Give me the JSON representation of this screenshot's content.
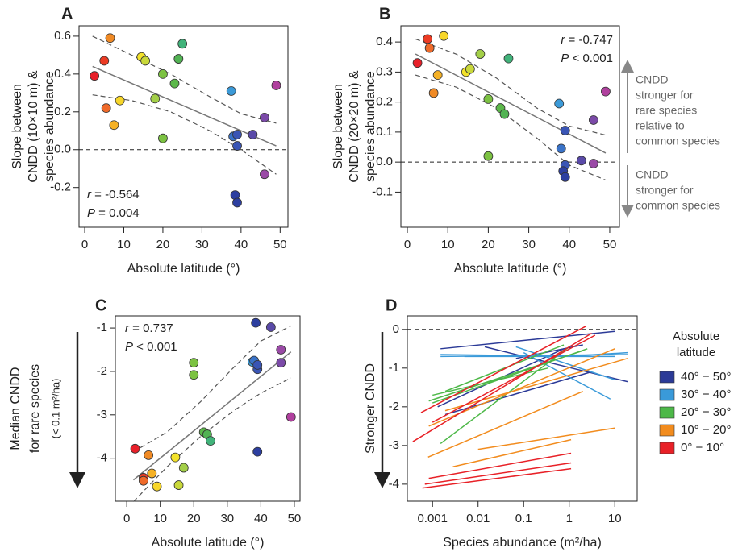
{
  "chart_data": [
    {
      "type": "scatter",
      "panel": "A",
      "xlabel": "Absolute latitude (°)",
      "ylabel": [
        "Slope between",
        "CNDD (10×10 m) &",
        "species abundance"
      ],
      "xlim": [
        -1.45,
        52
      ],
      "ylim": [
        -0.41,
        0.655
      ],
      "xticks": [
        0,
        10,
        20,
        30,
        40,
        50
      ],
      "yticks": [
        0.6,
        0.4,
        0.2,
        {
          "value": 0,
          "label": "0.0"
        },
        -0.2
      ],
      "hline": 0,
      "x": [
        2.5,
        5,
        5.5,
        6.5,
        7.5,
        9,
        14.5,
        15.5,
        18,
        20,
        20,
        23,
        24,
        25,
        37.5,
        38,
        39,
        39,
        38.5,
        39,
        43,
        46,
        46,
        49
      ],
      "y": [
        0.39,
        0.47,
        0.22,
        0.59,
        0.13,
        0.26,
        0.49,
        0.47,
        0.27,
        0.4,
        0.06,
        0.35,
        0.48,
        0.56,
        0.31,
        0.07,
        0.08,
        0.02,
        -0.24,
        -0.28,
        0.08,
        0.17,
        -0.13,
        0.34
      ],
      "colors": [
        "#e8202a",
        "#ec3b24",
        "#ef6a2a",
        "#f08a25",
        "#f5b125",
        "#f7d62a",
        "#f3e22a",
        "#c9d83a",
        "#a3cf48",
        "#7cc242",
        "#7cc242",
        "#5cb84a",
        "#52b353",
        "#41b37a",
        "#3b9ad8",
        "#3a73c8",
        "#3a55b5",
        "#3a55b5",
        "#2d3fa0",
        "#2d3fa0",
        "#5a4aa8",
        "#7b4aa8",
        "#9a4aa6",
        "#b0409e"
      ],
      "fit": {
        "x": [
          2,
          49
        ],
        "y": [
          0.44,
          0.02
        ]
      },
      "ci_upper": {
        "x": [
          2,
          12,
          22,
          32,
          40,
          49
        ],
        "y": [
          0.6,
          0.5,
          0.4,
          0.28,
          0.19,
          0.14
        ]
      },
      "ci_lower": {
        "x": [
          2,
          12,
          22,
          32,
          40,
          49
        ],
        "y": [
          0.29,
          0.26,
          0.2,
          0.1,
          0.0,
          -0.13
        ]
      },
      "stats_corner": "bottom-left",
      "stats": [
        {
          "symbol": "r",
          "text": " = -0.564"
        },
        {
          "symbol": "P",
          "text": " = 0.004"
        }
      ]
    },
    {
      "type": "scatter",
      "panel": "B",
      "xlabel": "Absolute latitude (°)",
      "ylabel": [
        "Slope between",
        "CNDD (20×20 m) &",
        "species abundance"
      ],
      "xlim": [
        -1.6,
        52.4
      ],
      "ylim": [
        -0.217,
        0.454
      ],
      "xticks": [
        0,
        10,
        20,
        30,
        40,
        50
      ],
      "yticks": [
        0.4,
        0.3,
        0.2,
        0.1,
        {
          "value": 0,
          "label": "0.0"
        },
        -0.1
      ],
      "hline": 0,
      "x": [
        2.5,
        5,
        5.5,
        6.5,
        7.5,
        9,
        14.5,
        15.5,
        18,
        20,
        20,
        23,
        24,
        25,
        37.5,
        38,
        39,
        39,
        38.5,
        39,
        43,
        46,
        46,
        49
      ],
      "y": [
        0.33,
        0.41,
        0.38,
        0.23,
        0.29,
        0.42,
        0.3,
        0.31,
        0.36,
        0.21,
        0.02,
        0.18,
        0.16,
        0.345,
        0.195,
        0.045,
        0.105,
        -0.01,
        -0.03,
        -0.05,
        0.005,
        0.14,
        -0.005,
        0.235
      ],
      "colors": [
        "#e8202a",
        "#ec3b24",
        "#ef6a2a",
        "#f08a25",
        "#f5b125",
        "#f7d62a",
        "#f3e22a",
        "#c9d83a",
        "#a3cf48",
        "#7cc242",
        "#7cc242",
        "#5cb84a",
        "#52b353",
        "#41b37a",
        "#3b9ad8",
        "#3a73c8",
        "#3a55b5",
        "#3a55b5",
        "#2d3fa0",
        "#2d3fa0",
        "#5a4aa8",
        "#7b4aa8",
        "#9a4aa6",
        "#b0409e"
      ],
      "fit": {
        "x": [
          2,
          49
        ],
        "y": [
          0.36,
          0.03
        ]
      },
      "ci_upper": {
        "x": [
          2,
          12,
          22,
          32,
          40,
          49
        ],
        "y": [
          0.41,
          0.36,
          0.28,
          0.18,
          0.12,
          0.09
        ]
      },
      "ci_lower": {
        "x": [
          2,
          12,
          22,
          32,
          40,
          49
        ],
        "y": [
          0.29,
          0.25,
          0.18,
          0.08,
          -0.01,
          -0.06
        ]
      },
      "stats_corner": "top-right",
      "stats": [
        {
          "symbol": "r",
          "text": " = -0.747"
        },
        {
          "symbol": "P",
          "text": " < 0.001"
        }
      ],
      "side_notes": [
        [
          "CNDD",
          "stronger for",
          "rare species",
          "relative to",
          "common species"
        ],
        [
          "CNDD",
          "stronger for",
          "common species"
        ]
      ]
    },
    {
      "type": "scatter",
      "panel": "C",
      "xlabel": "Absolute latitude (°)",
      "ylabel": [
        "Median CNDD",
        "for rare species",
        "(< 0.1 m²/ha)"
      ],
      "xlim": [
        -3.4,
        51.7
      ],
      "ylim": [
        -4.99,
        -0.72
      ],
      "xticks": [
        0,
        10,
        20,
        30,
        40,
        50
      ],
      "yticks": [
        -1,
        -2,
        -3,
        -4
      ],
      "x": [
        2.5,
        5,
        5,
        6.5,
        7.5,
        9,
        14.5,
        15.5,
        17,
        20,
        20,
        23,
        24,
        25,
        37.5,
        38,
        39,
        39,
        38.5,
        39,
        43,
        46,
        46,
        49
      ],
      "y": [
        -3.78,
        -4.45,
        -4.52,
        -3.93,
        -4.35,
        -4.65,
        -3.98,
        -4.62,
        -4.22,
        -1.8,
        -2.08,
        -3.4,
        -3.45,
        -3.6,
        -1.78,
        -1.75,
        -1.95,
        -1.85,
        -0.88,
        -3.85,
        -0.98,
        -1.8,
        -1.5,
        -3.05
      ],
      "colors": [
        "#e8202a",
        "#ec3b24",
        "#ef6a2a",
        "#f08a25",
        "#f5b125",
        "#f7d62a",
        "#f3e22a",
        "#c9d83a",
        "#a3cf48",
        "#7cc242",
        "#7cc242",
        "#5cb84a",
        "#52b353",
        "#41b37a",
        "#3b9ad8",
        "#3a73c8",
        "#3a55b5",
        "#3a55b5",
        "#2d3fa0",
        "#2d3fa0",
        "#5a4aa8",
        "#7b4aa8",
        "#9a4aa6",
        "#b0409e"
      ],
      "fit": {
        "x": [
          2,
          49
        ],
        "y": [
          -4.5,
          -1.55
        ]
      },
      "ci_upper": {
        "x": [
          2,
          12,
          22,
          32,
          40,
          49
        ],
        "y": [
          -3.85,
          -3.4,
          -2.7,
          -1.9,
          -1.3,
          -0.95
        ]
      },
      "ci_lower": {
        "x": [
          2,
          12,
          22,
          32,
          40,
          49
        ],
        "y": [
          -5.0,
          -4.2,
          -3.5,
          -2.9,
          -2.5,
          -2.15
        ]
      },
      "stats_corner": "top-left",
      "stats": [
        {
          "symbol": "r",
          "text": " = 0.737"
        },
        {
          "symbol": "P",
          "text": " < 0.001"
        }
      ]
    },
    {
      "type": "line",
      "panel": "D",
      "log_x": true,
      "xlabel": "Species abundance (m²/ha)",
      "ylabel": [
        "Stronger CNDD"
      ],
      "xlim": [
        0.00028,
        31
      ],
      "ylim": [
        -4.44,
        0.35
      ],
      "xticks": [
        0.001,
        0.01,
        0.1,
        1,
        10
      ],
      "yticks": [
        0,
        -1,
        -2,
        -3,
        -4
      ],
      "hline": 0,
      "legend_title": [
        "Absolute",
        "latitude"
      ],
      "series": [
        {
          "name": "40° − 50°",
          "color": "#2b3a97",
          "segments": [
            {
              "x": [
                0.0015,
                10
              ],
              "y": [
                -0.5,
                -0.05
              ]
            },
            {
              "x": [
                0.014,
                19
              ],
              "y": [
                -0.45,
                -1.35
              ]
            },
            {
              "x": [
                0.0013,
                0.76
              ],
              "y": [
                -2.0,
                -0.5
              ]
            },
            {
              "x": [
                0.0019,
                3
              ],
              "y": [
                -2.2,
                -1.1
              ]
            },
            {
              "x": [
                0.068,
                2
              ],
              "y": [
                -0.75,
                -0.4
              ]
            }
          ]
        },
        {
          "name": "30° − 40°",
          "color": "#3a9ad9",
          "segments": [
            {
              "x": [
                0.0015,
                19
              ],
              "y": [
                -0.7,
                -0.65
              ]
            },
            {
              "x": [
                0.0015,
                3.1
              ],
              "y": [
                -0.65,
                -0.7
              ]
            },
            {
              "x": [
                0.005,
                10
              ],
              "y": [
                -0.7,
                -0.7
              ]
            },
            {
              "x": [
                0.068,
                10
              ],
              "y": [
                -0.45,
                -1.3
              ]
            },
            {
              "x": [
                0.76,
                19
              ],
              "y": [
                -0.7,
                -0.6
              ]
            },
            {
              "x": [
                0.1,
                8
              ],
              "y": [
                -0.6,
                -1.8
              ]
            }
          ]
        },
        {
          "name": "20° − 30°",
          "color": "#4db848",
          "segments": [
            {
              "x": [
                0.00083,
                2
              ],
              "y": [
                -1.85,
                -0.55
              ]
            },
            {
              "x": [
                0.0015,
                1
              ],
              "y": [
                -2.95,
                -0.45
              ]
            },
            {
              "x": [
                0.001,
                0.34
              ],
              "y": [
                -1.7,
                -1.0
              ]
            },
            {
              "x": [
                0.001,
                2.5
              ],
              "y": [
                -1.9,
                -0.5
              ]
            },
            {
              "x": [
                0.0019,
                0.76
              ],
              "y": [
                -1.6,
                -0.4
              ]
            }
          ]
        },
        {
          "name": "10° − 20°",
          "color": "#f28c1e",
          "segments": [
            {
              "x": [
                0.0028,
                1.1
              ],
              "y": [
                -3.55,
                -2.85
              ]
            },
            {
              "x": [
                0.01,
                10
              ],
              "y": [
                -3.1,
                -2.55
              ]
            },
            {
              "x": [
                0.0008,
                2
              ],
              "y": [
                -3.3,
                -1.6
              ]
            },
            {
              "x": [
                0.0019,
                19
              ],
              "y": [
                -2.1,
                -0.75
              ]
            },
            {
              "x": [
                0.00083,
                10
              ],
              "y": [
                -2.5,
                -0.5
              ]
            }
          ]
        },
        {
          "name": "0° − 10°",
          "color": "#e82127",
          "segments": [
            {
              "x": [
                0.00056,
                2.3
              ],
              "y": [
                -2.15,
                0.08
              ]
            },
            {
              "x": [
                0.00037,
                3.1
              ],
              "y": [
                -2.9,
                -0.1
              ]
            },
            {
              "x": [
                0.001,
                3.7
              ],
              "y": [
                -2.4,
                -0.15
              ]
            },
            {
              "x": [
                0.00083,
                1.1
              ],
              "y": [
                -3.85,
                -3.2
              ]
            },
            {
              "x": [
                0.00068,
                1.1
              ],
              "y": [
                -4.0,
                -3.45
              ]
            },
            {
              "x": [
                0.0006,
                1.1
              ],
              "y": [
                -4.1,
                -3.6
              ]
            }
          ]
        }
      ]
    }
  ]
}
